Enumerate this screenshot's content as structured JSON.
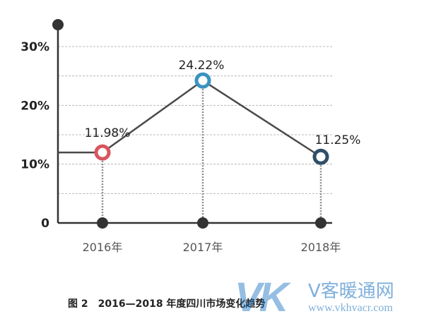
{
  "chart_data": {
    "type": "line",
    "categories": [
      "2016年",
      "2017年",
      "2018年"
    ],
    "values": [
      11.98,
      24.22,
      11.25
    ],
    "data_labels": [
      "11.98%",
      "24.22%",
      "11.25%"
    ],
    "ylim": [
      0,
      30
    ],
    "yticks": [
      {
        "value": 0,
        "label": "0"
      },
      {
        "value": 10,
        "label": "10%"
      },
      {
        "value": 20,
        "label": "20%"
      },
      {
        "value": 30,
        "label": "30%"
      }
    ],
    "grid": true,
    "point_colors": [
      "#d9545e",
      "#3a93c0",
      "#2f4f6a"
    ],
    "line_color": "#4a4a4a"
  },
  "caption": {
    "figure": "图 2",
    "text": "2016—2018 年度四川市场变化趋势"
  },
  "watermark": {
    "logo": "VK",
    "name": "V客暖通网",
    "url": "www.vkhvacr.com"
  }
}
